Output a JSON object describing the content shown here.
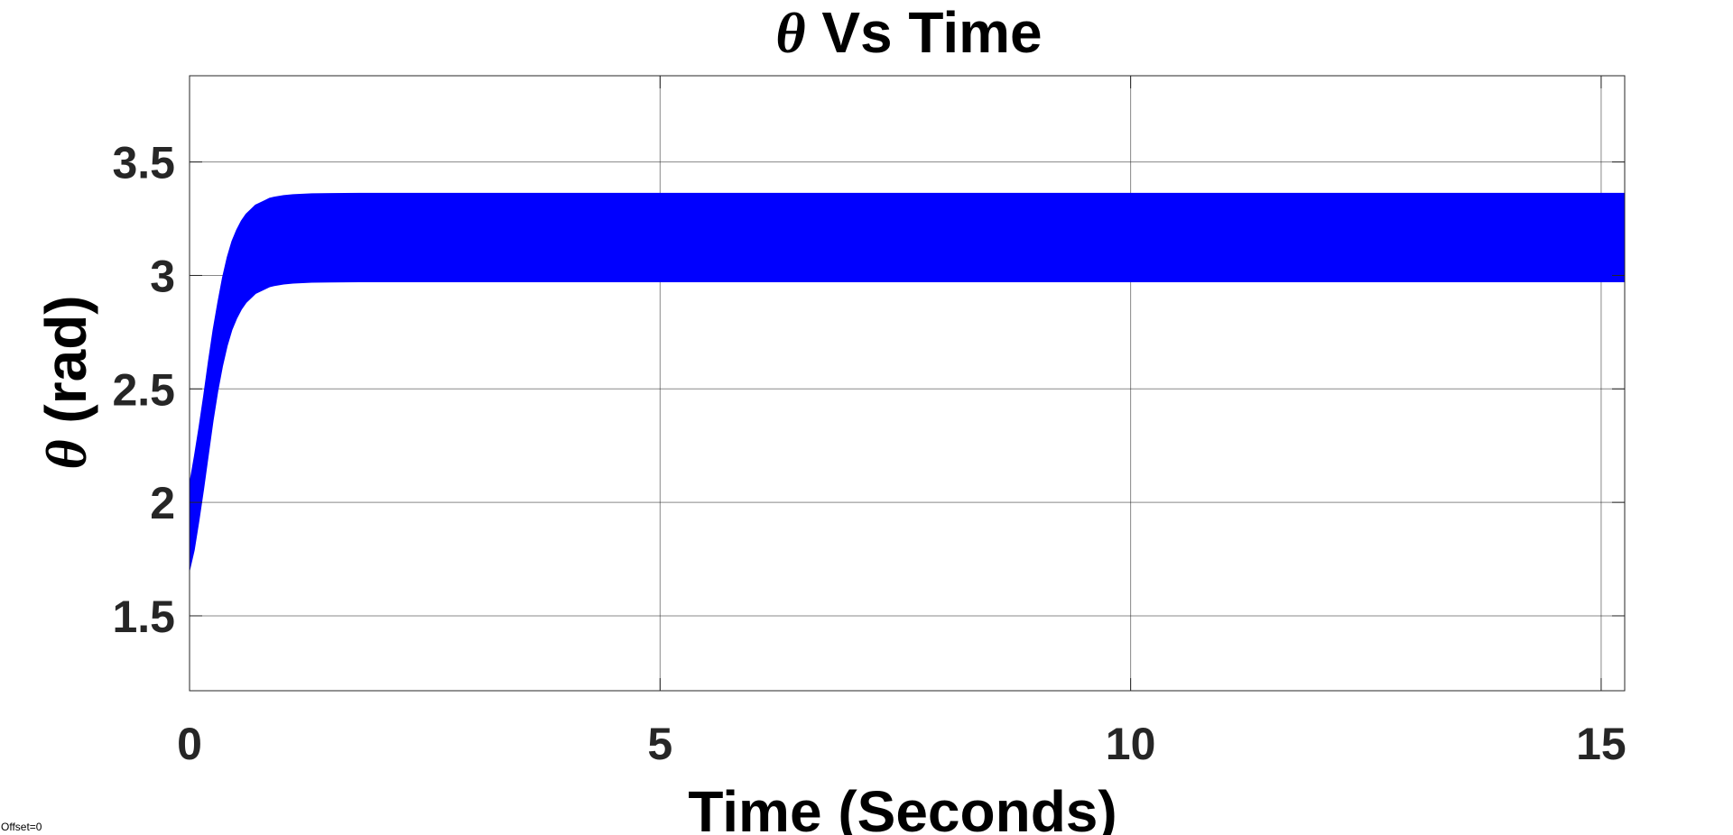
{
  "chart_data": {
    "type": "area",
    "title_symbol": "θ",
    "title_text": " Vs Time",
    "xlabel": "Time (Seconds)",
    "ylabel_symbol": "θ",
    "ylabel_text": " (rad)",
    "xlim": [
      0,
      15.25
    ],
    "ylim": [
      1.17,
      3.88
    ],
    "xticks": [
      0,
      5,
      10,
      15
    ],
    "xtick_labels": [
      "0",
      "5",
      "10",
      "15"
    ],
    "yticks": [
      1.5,
      2,
      2.5,
      3,
      3.5
    ],
    "ytick_labels": [
      "1.5",
      "2",
      "2.5",
      "3",
      "3.5"
    ],
    "grid": true,
    "series": [
      {
        "color": "#0000ff",
        "x": [
          0,
          0.05,
          0.1,
          0.15,
          0.2,
          0.25,
          0.3,
          0.35,
          0.4,
          0.45,
          0.5,
          0.55,
          0.6,
          0.65,
          0.7,
          0.75,
          0.8,
          0.85,
          0.9,
          1.0,
          1.1,
          1.2,
          1.3,
          1.5,
          1.8,
          2.2,
          3,
          5,
          10,
          15.25
        ],
        "upper": [
          2.08,
          2.2,
          2.33,
          2.47,
          2.62,
          2.76,
          2.88,
          2.99,
          3.08,
          3.15,
          3.2,
          3.24,
          3.27,
          3.29,
          3.31,
          3.32,
          3.33,
          3.34,
          3.345,
          3.352,
          3.356,
          3.358,
          3.36,
          3.361,
          3.362,
          3.362,
          3.362,
          3.362,
          3.362,
          3.362
        ],
        "lower": [
          1.7,
          1.79,
          1.92,
          2.06,
          2.21,
          2.36,
          2.49,
          2.6,
          2.69,
          2.76,
          2.81,
          2.85,
          2.88,
          2.9,
          2.92,
          2.93,
          2.94,
          2.95,
          2.955,
          2.962,
          2.966,
          2.968,
          2.97,
          2.971,
          2.972,
          2.972,
          2.972,
          2.972,
          2.972,
          2.972
        ]
      }
    ]
  },
  "footer": {
    "offset_text": "Offset=0"
  }
}
